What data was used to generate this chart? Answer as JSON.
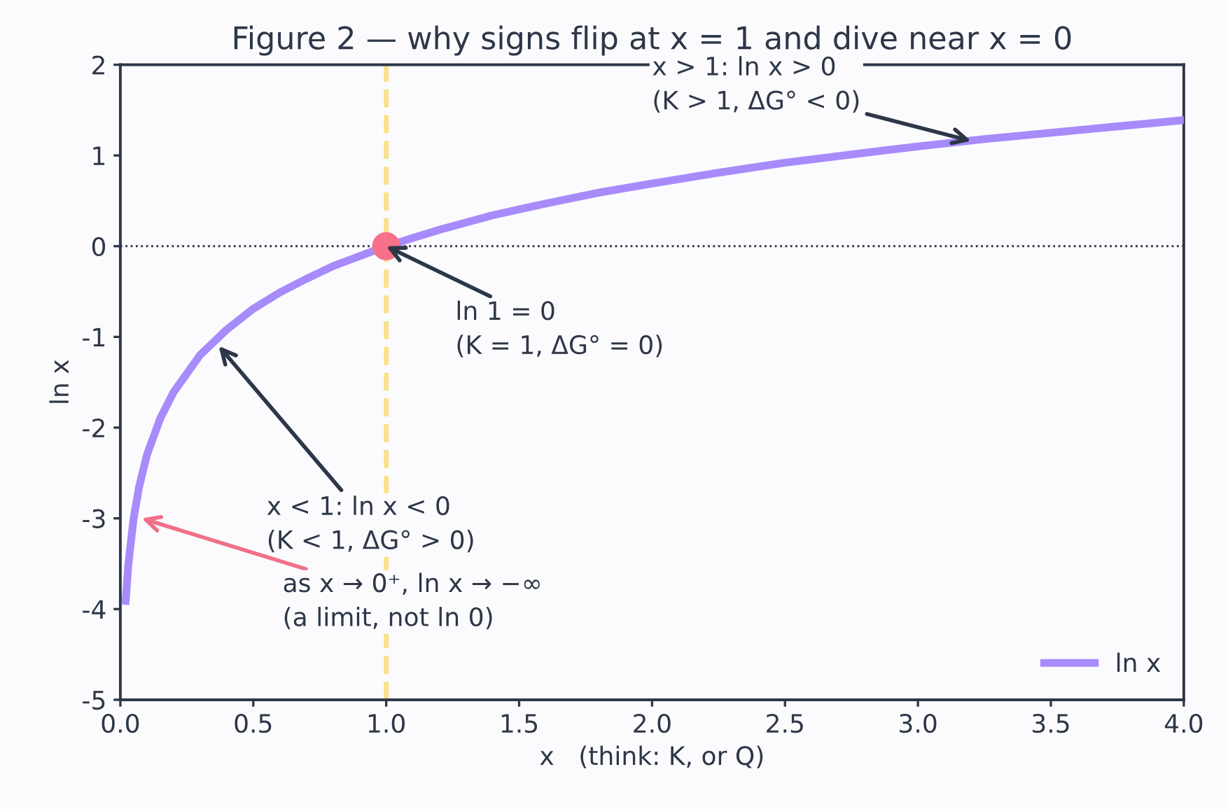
{
  "chart_data": {
    "type": "line",
    "title": "Figure 2 — why signs flip at x = 1 and dive near x = 0",
    "xlabel": "x   (think: K, or Q)",
    "ylabel": "ln x",
    "series": [
      {
        "name": "ln x",
        "color": "#a78bfa",
        "x": [
          0.02,
          0.03,
          0.05,
          0.07,
          0.1,
          0.15,
          0.2,
          0.3,
          0.4,
          0.5,
          0.6,
          0.7,
          0.8,
          0.9,
          1.0,
          1.2,
          1.4,
          1.6,
          1.8,
          2.0,
          2.25,
          2.5,
          2.75,
          3.0,
          3.25,
          3.5,
          3.75,
          4.0
        ],
        "values": [
          -3.91,
          -3.51,
          -3.0,
          -2.66,
          -2.3,
          -1.9,
          -1.61,
          -1.2,
          -0.92,
          -0.69,
          -0.51,
          -0.36,
          -0.22,
          -0.11,
          0.0,
          0.18,
          0.34,
          0.47,
          0.59,
          0.69,
          0.81,
          0.92,
          1.01,
          1.1,
          1.18,
          1.25,
          1.32,
          1.39
        ]
      },
      {
        "type": "scatter",
        "color": "#f7718a",
        "x": [
          1.0
        ],
        "values": [
          0.0
        ]
      }
    ],
    "ref_lines": [
      {
        "axis": "x",
        "value": 1,
        "color": "#f9e08b",
        "line_style": "dashed"
      },
      {
        "axis": "y",
        "value": 0,
        "color": "#2d3748",
        "line_style": "dotted"
      }
    ],
    "annotations": [
      {
        "text": "x > 1: ln x > 0\n(K > 1, ΔG° < 0)",
        "x": 3.2,
        "y": 1.16
      },
      {
        "text": "ln 1 = 0\n(K = 1, ΔG° = 0)",
        "x": 1.0,
        "y": 0.0
      },
      {
        "text": "x < 1: ln x < 0\n(K < 1, ΔG° > 0)",
        "x": 0.37,
        "y": -1.1
      },
      {
        "text": "as x → 0⁺, ln x → −∞\n(a limit, not ln 0)",
        "x": 0.08,
        "y": -3.0
      }
    ],
    "xlim": [
      0.0,
      4.0
    ],
    "xticks": [
      {
        "value": 0,
        "label": "0.0"
      },
      0.5,
      {
        "value": 1,
        "label": "1.0"
      },
      1.5,
      {
        "value": 2,
        "label": "2.0"
      },
      2.5,
      {
        "value": 3,
        "label": "3.0"
      },
      3.5,
      {
        "value": 4,
        "label": "4.0"
      }
    ],
    "ylim": [
      -5,
      2
    ],
    "yticks": [
      -5,
      -4,
      -3,
      -2,
      -1,
      0,
      1,
      2
    ],
    "legend": "bottom right",
    "grid": false
  }
}
